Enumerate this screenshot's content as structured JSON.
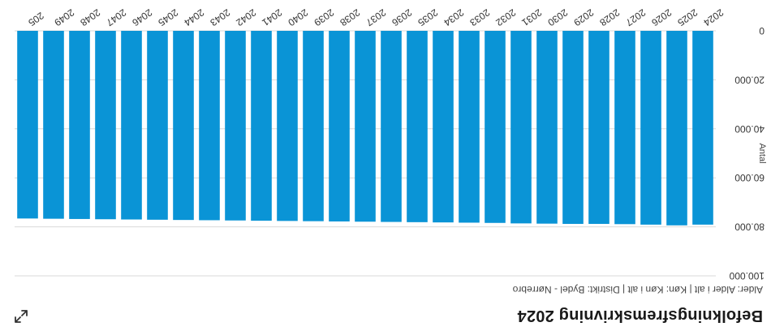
{
  "header": {
    "title": "Befolkningsfremskrivning 2024",
    "filters": "Alder: Alder i alt | Køn: Køn i alt | Distrikt: Bydel - Nørrebro"
  },
  "icons": {
    "expand": "expand-arrows-icon"
  },
  "colors": {
    "bar": "#0a94d6",
    "grid": "#d9d9d9"
  },
  "chart_data": {
    "type": "bar",
    "title": "Befolkningsfremskrivning 2024",
    "ylabel": "Antal",
    "xlabel": "",
    "ylim": [
      0,
      100000
    ],
    "yticks": [
      0,
      20000,
      40000,
      60000,
      80000,
      100000
    ],
    "ytick_labels": [
      "0",
      "20.000",
      "40.000",
      "60.000",
      "80.000",
      "100.000"
    ],
    "grid": true,
    "categories": [
      "2024",
      "2025",
      "2026",
      "2027",
      "2028",
      "2029",
      "2030",
      "2031",
      "2032",
      "2033",
      "2034",
      "2035",
      "2036",
      "2037",
      "2038",
      "2039",
      "2040",
      "2041",
      "2042",
      "2043",
      "2044",
      "2045",
      "2046",
      "2047",
      "2048",
      "2049",
      "205"
    ],
    "series": [
      {
        "values": [
          79100,
          79400,
          79100,
          78900,
          78800,
          78800,
          78700,
          78600,
          78400,
          78300,
          78200,
          78100,
          78000,
          77900,
          77800,
          77700,
          77600,
          77500,
          77400,
          77300,
          77200,
          77100,
          77000,
          76900,
          76800,
          76700,
          76600
        ]
      }
    ]
  }
}
